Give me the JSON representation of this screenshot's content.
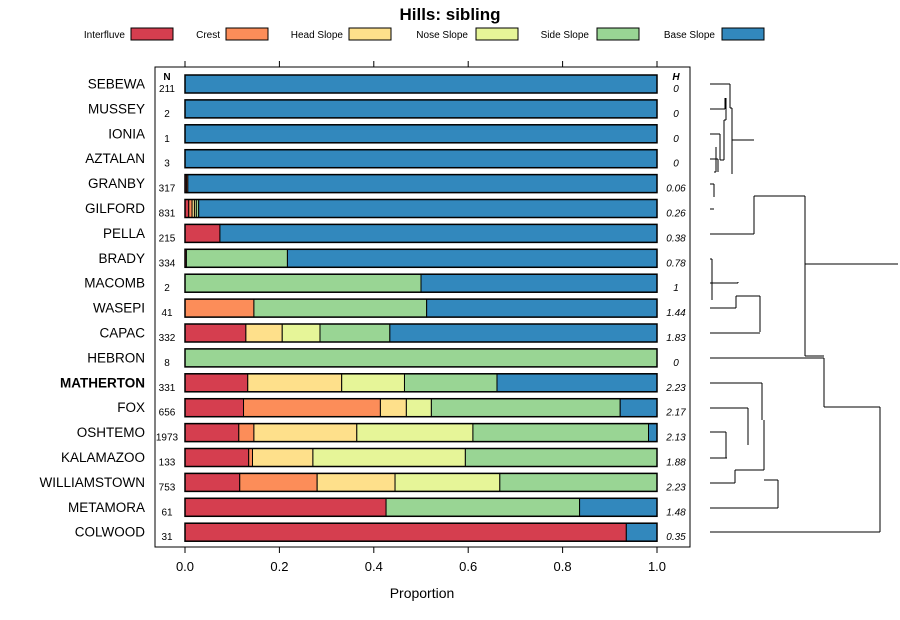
{
  "chart_data": {
    "type": "bar",
    "orientation": "horizontal-stacked",
    "title": "Hills: sibling",
    "xlabel": "Proportion",
    "xlim": [
      0,
      1
    ],
    "xticks": [
      "0.0",
      "0.2",
      "0.4",
      "0.6",
      "0.8",
      "1.0"
    ],
    "xtick_values": [
      0,
      0.2,
      0.4,
      0.6,
      0.8,
      1.0
    ],
    "n_header": "N",
    "h_header": "H",
    "legend": [
      {
        "name": "Interfluve",
        "color": "#d53e4f"
      },
      {
        "name": "Crest",
        "color": "#fc8d59"
      },
      {
        "name": "Head Slope",
        "color": "#fee08b"
      },
      {
        "name": "Nose Slope",
        "color": "#e6f598"
      },
      {
        "name": "Side Slope",
        "color": "#99d594"
      },
      {
        "name": "Base Slope",
        "color": "#3288bd"
      }
    ],
    "rows": [
      {
        "name": "SEBEWA",
        "n": "211",
        "h": "0",
        "bold": false,
        "values": [
          0,
          0,
          0,
          0,
          0,
          1.0
        ]
      },
      {
        "name": "MUSSEY",
        "n": "2",
        "h": "0",
        "bold": false,
        "values": [
          0,
          0,
          0,
          0,
          0,
          1.0
        ]
      },
      {
        "name": "IONIA",
        "n": "1",
        "h": "0",
        "bold": false,
        "values": [
          0,
          0,
          0,
          0,
          0,
          1.0
        ]
      },
      {
        "name": "AZTALAN",
        "n": "3",
        "h": "0",
        "bold": false,
        "values": [
          0,
          0,
          0,
          0,
          0,
          1.0
        ]
      },
      {
        "name": "GRANBY",
        "n": "317",
        "h": "0.06",
        "bold": false,
        "values": [
          0.003,
          0.003,
          0,
          0,
          0,
          0.994
        ]
      },
      {
        "name": "GILFORD",
        "n": "831",
        "h": "0.26",
        "bold": false,
        "values": [
          0.008,
          0.007,
          0.005,
          0.004,
          0.005,
          0.971
        ]
      },
      {
        "name": "PELLA",
        "n": "215",
        "h": "0.38",
        "bold": false,
        "values": [
          0.074,
          0,
          0,
          0,
          0,
          0.926
        ]
      },
      {
        "name": "BRADY",
        "n": "334",
        "h": "0.78",
        "bold": false,
        "values": [
          0.003,
          0,
          0,
          0,
          0.214,
          0.783
        ]
      },
      {
        "name": "MACOMB",
        "n": "2",
        "h": "1",
        "bold": false,
        "values": [
          0,
          0,
          0,
          0,
          0.5,
          0.5
        ]
      },
      {
        "name": "WASEPI",
        "n": "41",
        "h": "1.44",
        "bold": false,
        "values": [
          0,
          0.146,
          0,
          0,
          0.366,
          0.488
        ]
      },
      {
        "name": "CAPAC",
        "n": "332",
        "h": "1.83",
        "bold": false,
        "values": [
          0.129,
          0,
          0.077,
          0.08,
          0.148,
          0.566
        ]
      },
      {
        "name": "HEBRON",
        "n": "8",
        "h": "0",
        "bold": false,
        "values": [
          0,
          0,
          0,
          0,
          1.0,
          0
        ]
      },
      {
        "name": "MATHERTON",
        "n": "331",
        "h": "2.23",
        "bold": true,
        "values": [
          0.133,
          0,
          0.199,
          0.133,
          0.196,
          0.339
        ]
      },
      {
        "name": "FOX",
        "n": "656",
        "h": "2.17",
        "bold": false,
        "values": [
          0.124,
          0.29,
          0.055,
          0.053,
          0.4,
          0.078
        ]
      },
      {
        "name": "OSHTEMO",
        "n": "1973",
        "h": "2.13",
        "bold": false,
        "values": [
          0.114,
          0.032,
          0.218,
          0.246,
          0.372,
          0.018
        ]
      },
      {
        "name": "KALAMAZOO",
        "n": "133",
        "h": "1.88",
        "bold": false,
        "values": [
          0.135,
          0.008,
          0.128,
          0.323,
          0.406,
          0
        ]
      },
      {
        "name": "WILLIAMSTOWN",
        "n": "753",
        "h": "2.23",
        "bold": false,
        "values": [
          0.116,
          0.164,
          0.165,
          0.222,
          0.333,
          0
        ]
      },
      {
        "name": "METAMORA",
        "n": "61",
        "h": "1.48",
        "bold": false,
        "values": [
          0.426,
          0,
          0,
          0,
          0.41,
          0.164
        ]
      },
      {
        "name": "COLWOOD",
        "n": "31",
        "h": "0.35",
        "bold": false,
        "values": [
          0.935,
          0,
          0,
          0,
          0,
          0.065
        ]
      }
    ]
  }
}
